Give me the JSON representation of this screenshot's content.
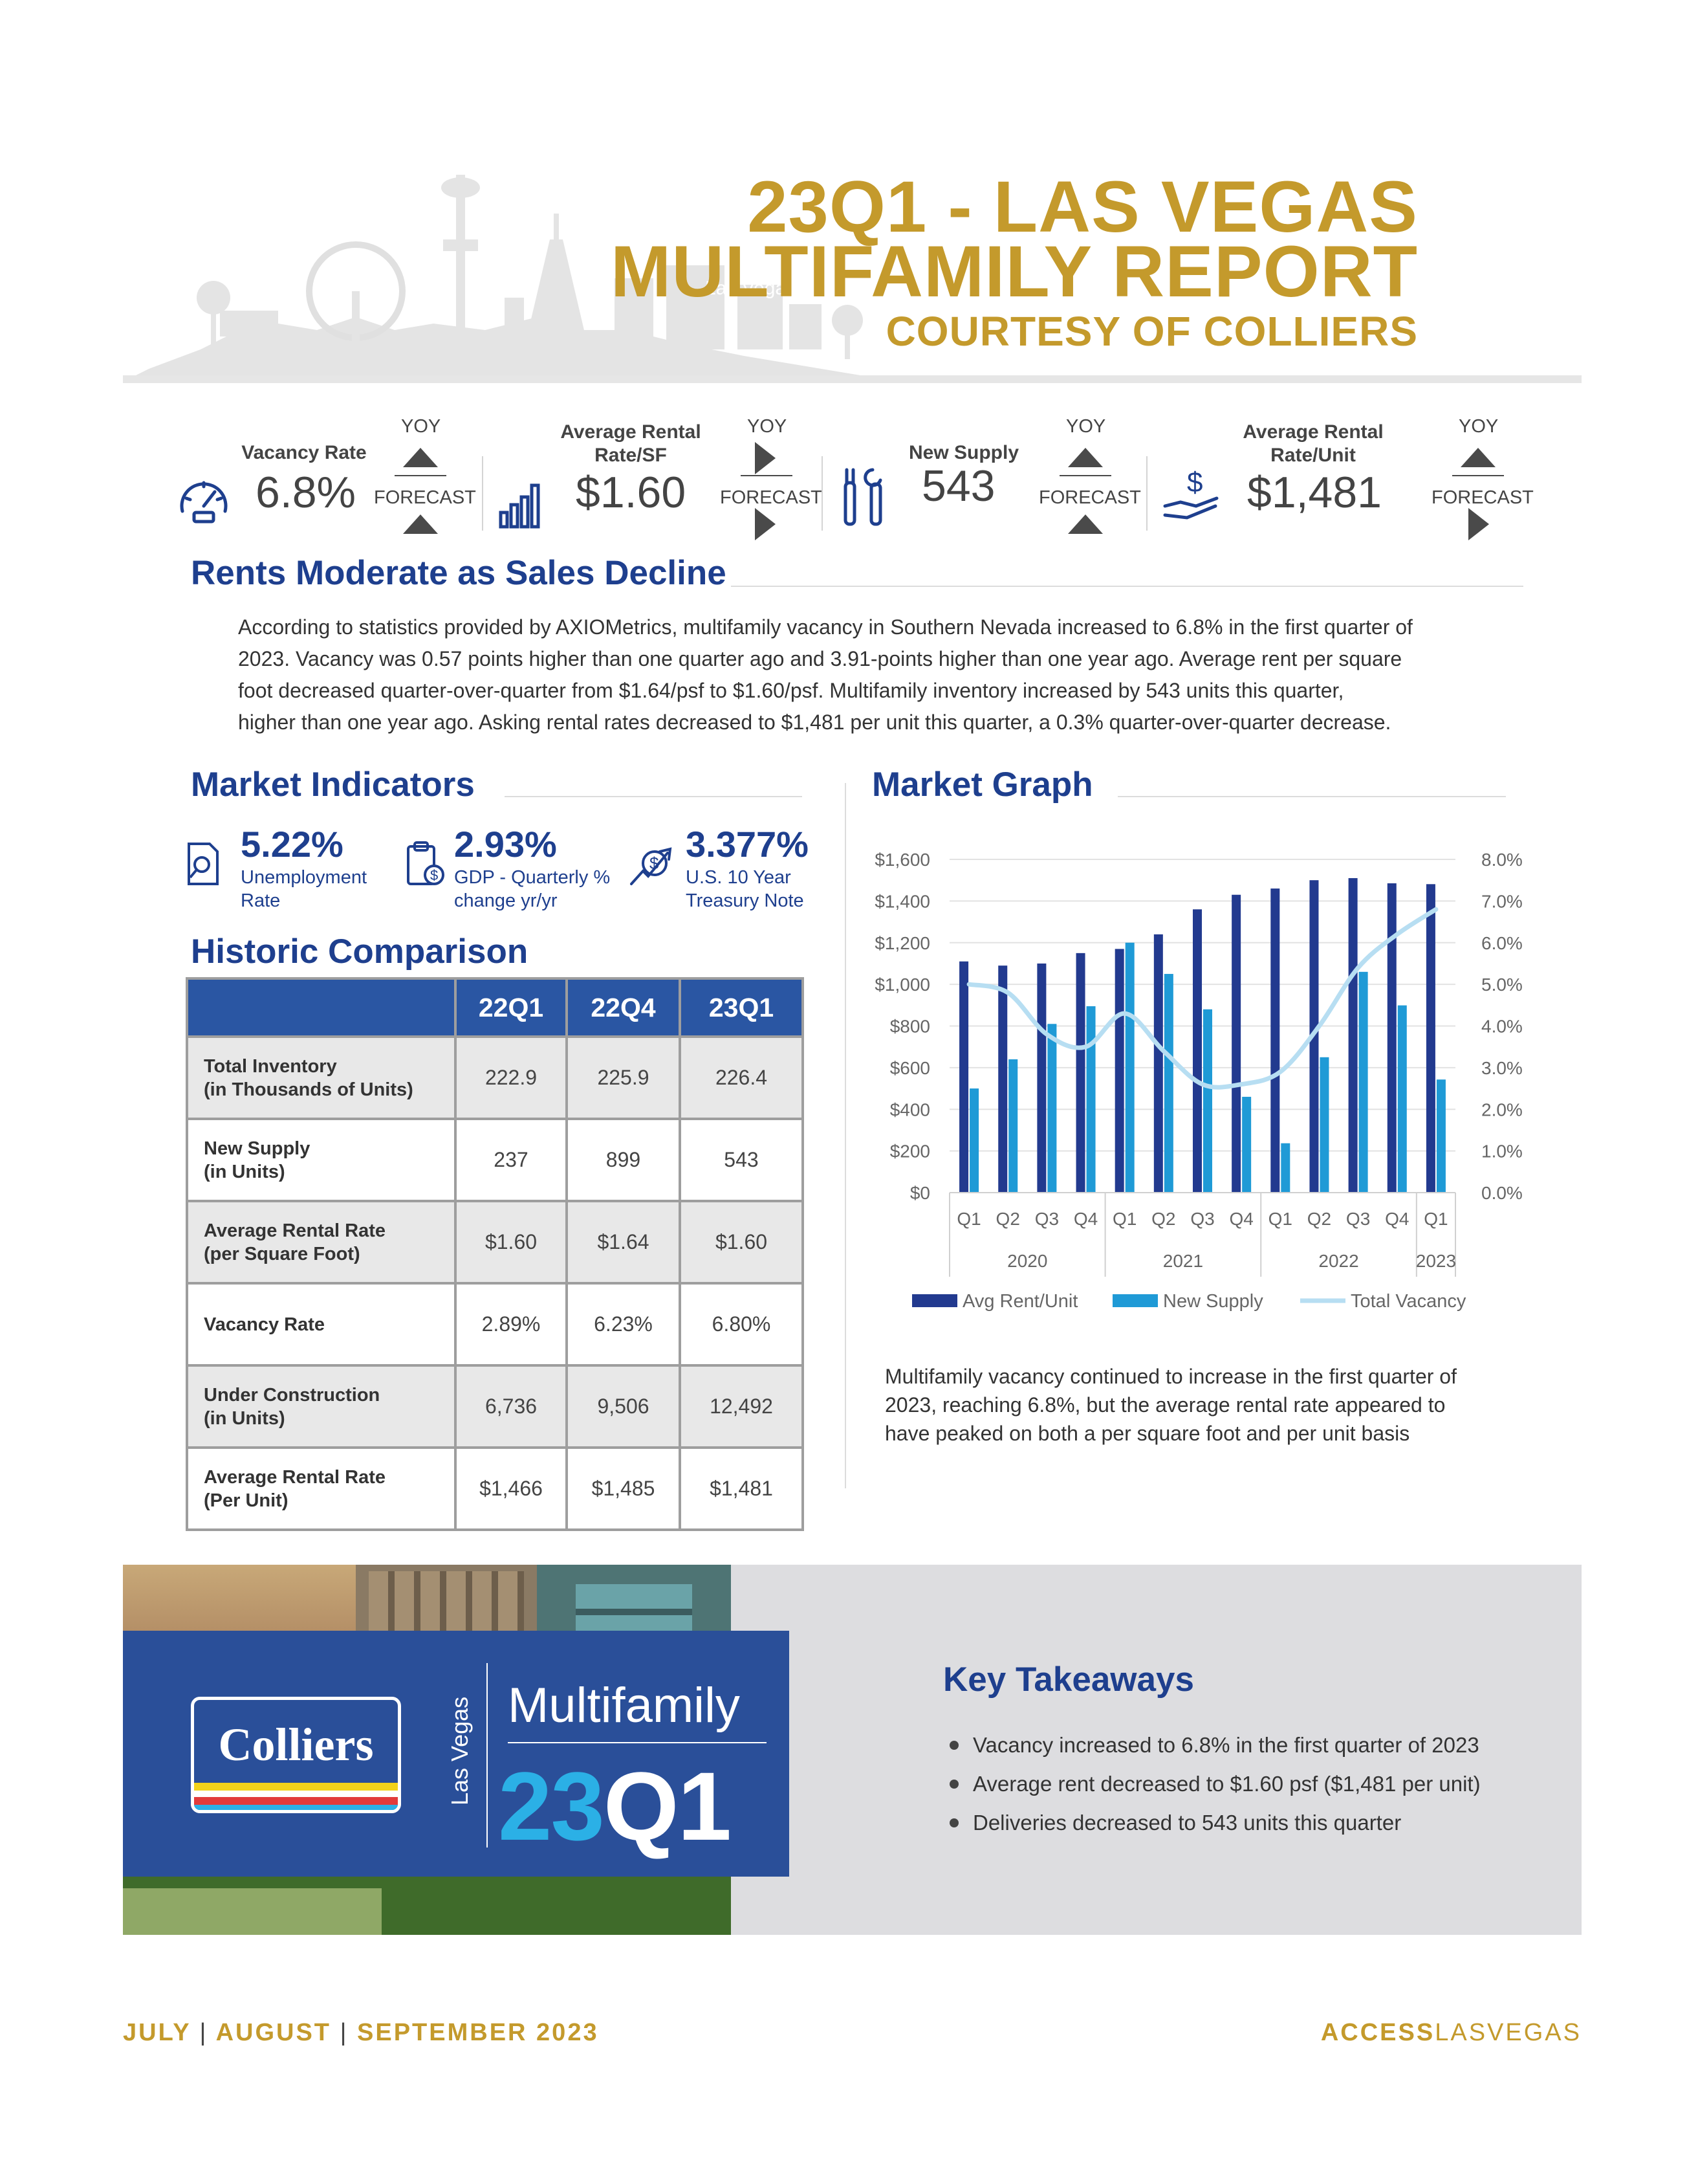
{
  "header": {
    "title_line1": "23Q1 - LAS VEGAS",
    "title_line2": "MULTIFAMILY REPORT",
    "title_line3": "COURTESY OF COLLIERS",
    "skyline_sign": "Las Vegas"
  },
  "kpis": [
    {
      "label_line1": "Vacancy Rate",
      "label_line2": "",
      "value": "6.8%",
      "yoy": "YOY",
      "yoy_dir": "up",
      "forecast": "FORECAST",
      "forecast_dir": "up",
      "icon": "speedometer-icon"
    },
    {
      "label_line1": "Average Rental",
      "label_line2": "Rate/SF",
      "value": "$1.60",
      "yoy": "YOY",
      "yoy_dir": "right",
      "forecast": "FORECAST",
      "forecast_dir": "right",
      "icon": "bar-chart-icon"
    },
    {
      "label_line1": "New Supply",
      "label_line2": "",
      "value": "543",
      "yoy": "YOY",
      "yoy_dir": "up",
      "forecast": "FORECAST",
      "forecast_dir": "up",
      "icon": "tools-icon"
    },
    {
      "label_line1": "Average Rental",
      "label_line2": "Rate/Unit",
      "value": "$1,481",
      "yoy": "YOY",
      "yoy_dir": "up",
      "forecast": "FORECAST",
      "forecast_dir": "right",
      "icon": "hand-dollar-icon"
    }
  ],
  "summary": {
    "heading": "Rents Moderate as Sales Decline",
    "lines": [
      "According to statistics provided by AXIOMetrics, multifamily vacancy in Southern Nevada increased to 6.8% in the first quarter of",
      "2023. Vacancy was 0.57 points higher than one quarter ago and 3.91-points higher than one year ago. Average rent per square",
      "foot decreased quarter-over-quarter from $1.64/psf to $1.60/psf. Multifamily inventory increased by 543 units this quarter,",
      "higher than one year ago. Asking rental rates decreased to $1,481 per unit this quarter, a 0.3% quarter-over-quarter decrease."
    ]
  },
  "market_indicators": {
    "heading": "Market Indicators",
    "items": [
      {
        "value": "5.22%",
        "label_line1": "Unemployment",
        "label_line2": "Rate",
        "icon": "search-document-icon"
      },
      {
        "value": "2.93%",
        "label_line1": "GDP - Quarterly %",
        "label_line2": "change yr/yr",
        "icon": "clipboard-money-icon"
      },
      {
        "value": "3.377%",
        "label_line1": "U.S. 10 Year",
        "label_line2": "Treasury Note",
        "icon": "dollar-trend-icon"
      }
    ]
  },
  "historic": {
    "heading": "Historic Comparison",
    "columns": [
      "22Q1",
      "22Q4",
      "23Q1"
    ],
    "rows": [
      {
        "label_line1": "Total Inventory",
        "label_line2": "(in Thousands of Units)",
        "values": [
          "222.9",
          "225.9",
          "226.4"
        ]
      },
      {
        "label_line1": "New Supply",
        "label_line2": "(in Units)",
        "values": [
          "237",
          "899",
          "543"
        ]
      },
      {
        "label_line1": "Average Rental Rate",
        "label_line2": "(per Square Foot)",
        "values": [
          "$1.60",
          "$1.64",
          "$1.60"
        ]
      },
      {
        "label_line1": "Vacancy Rate",
        "label_line2": "",
        "values": [
          "2.89%",
          "6.23%",
          "6.80%"
        ]
      },
      {
        "label_line1": "Under Construction",
        "label_line2": "(in Units)",
        "values": [
          "6,736",
          "9,506",
          "12,492"
        ]
      },
      {
        "label_line1": "Average Rental Rate",
        "label_line2": "(Per Unit)",
        "values": [
          "$1,466",
          "$1,485",
          "$1,481"
        ]
      }
    ]
  },
  "chart_heading": "Market Graph",
  "chart_data": {
    "type": "bar",
    "categories": [
      "Q1",
      "Q2",
      "Q3",
      "Q4",
      "Q1",
      "Q2",
      "Q3",
      "Q4",
      "Q1",
      "Q2",
      "Q3",
      "Q4",
      "Q1"
    ],
    "year_groups": [
      {
        "label": "2020",
        "count": 4
      },
      {
        "label": "2021",
        "count": 4
      },
      {
        "label": "2022",
        "count": 4
      },
      {
        "label": "2023",
        "count": 1
      }
    ],
    "series": [
      {
        "name": "Avg Rent/Unit",
        "kind": "bar",
        "axis": "left",
        "color": "#223a8f",
        "values": [
          1110,
          1090,
          1100,
          1150,
          1170,
          1240,
          1360,
          1430,
          1460,
          1500,
          1510,
          1485,
          1481
        ]
      },
      {
        "name": "New Supply",
        "kind": "bar",
        "axis": "left",
        "color": "#1f9ad6",
        "values": [
          500,
          640,
          810,
          895,
          1200,
          1050,
          880,
          460,
          237,
          650,
          1060,
          899,
          543
        ]
      },
      {
        "name": "Total Vacancy",
        "kind": "line",
        "axis": "right",
        "color": "#b7def2",
        "values": [
          5.0,
          4.8,
          3.8,
          3.5,
          4.3,
          3.4,
          2.6,
          2.6,
          2.9,
          4.0,
          5.4,
          6.2,
          6.8
        ]
      }
    ],
    "y_left": {
      "min": 0,
      "max": 1600,
      "ticks": [
        "$0",
        "$200",
        "$400",
        "$600",
        "$800",
        "$1,000",
        "$1,200",
        "$1,400",
        "$1,600"
      ]
    },
    "y_right": {
      "min": 0,
      "max": 8,
      "ticks": [
        "0.0%",
        "1.0%",
        "2.0%",
        "3.0%",
        "4.0%",
        "5.0%",
        "6.0%",
        "7.0%",
        "8.0%"
      ]
    },
    "grid": true,
    "legend_position": "bottom"
  },
  "chart_note": {
    "lines": [
      "Multifamily vacancy continued to increase in the first quarter of",
      "2023, reaching 6.8%, but the average rental rate appeared to",
      "have peaked on both a per square foot and per unit basis"
    ]
  },
  "banner": {
    "logo": "Colliers",
    "city": "Las Vegas",
    "product": "Multifamily",
    "quarter_year": "23",
    "quarter_q": "Q1"
  },
  "takeaways": {
    "heading": "Key Takeaways",
    "items": [
      "Vacancy increased to 6.8% in the first quarter of 2023",
      "Average rent decreased to $1.60 psf ($1,481 per unit)",
      "Deliveries decreased to 543 units this quarter"
    ]
  },
  "footer": {
    "months": [
      "JULY",
      "AUGUST",
      "SEPTEMBER 2023"
    ],
    "sep": "|",
    "brand_bold": "ACCESS",
    "brand_light": "LASVEGAS"
  },
  "colors": {
    "gold": "#c49a2c",
    "navy": "#1e3f8e",
    "table_header": "#2a56a3",
    "banner_blue": "#2a4f99",
    "light_blue": "#2bb0e6"
  }
}
